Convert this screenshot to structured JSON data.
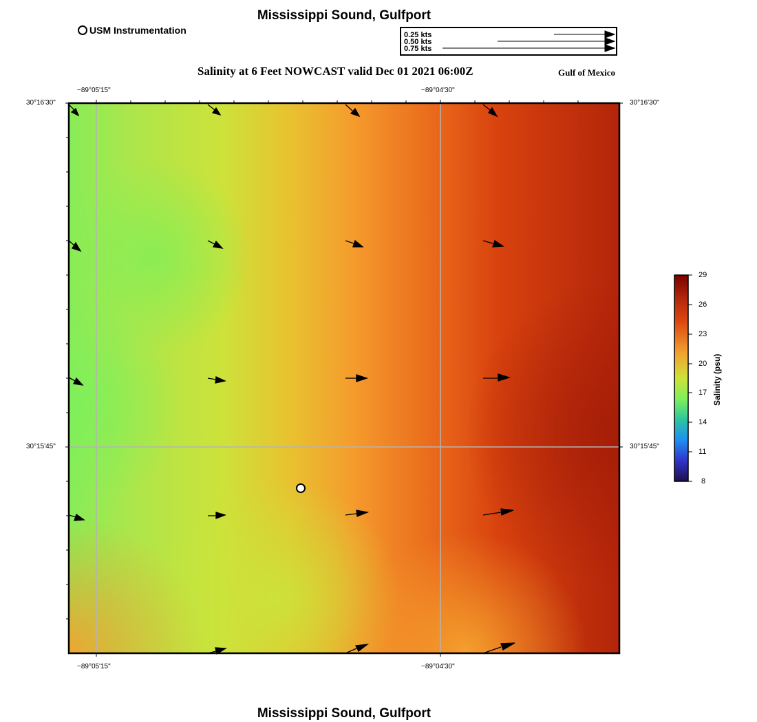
{
  "header": {
    "title": "Mississippi Sound, Gulfport",
    "subtitle": "Salinity at 6 Feet NOWCAST valid Dec 01 2021 06:00Z",
    "region": "Gulf of Mexico"
  },
  "footer": {
    "title": "Mississippi Sound, Gulfport"
  },
  "legend": {
    "marker_label": "USM Instrumentation"
  },
  "vector_scale": {
    "rows": [
      {
        "label": "0.25 kts"
      },
      {
        "label": "0.50 kts"
      },
      {
        "label": "0.75 kts"
      }
    ]
  },
  "map": {
    "lon_labels": [
      "−89°05'15\"",
      "−89°04'30\""
    ],
    "lat_labels": [
      "30°16'30\"",
      "30°15'45\""
    ]
  },
  "colorbar": {
    "title": "Salinity (psu)",
    "ticks": [
      "29",
      "26",
      "23",
      "20",
      "17",
      "14",
      "11",
      "8"
    ],
    "stops": [
      "#7a0000",
      "#b52a0c",
      "#dc4510",
      "#f2a230",
      "#cde23a",
      "#7ff05a",
      "#2dc6a0",
      "#1f8ff2",
      "#3034c8",
      "#1d0f50"
    ]
  },
  "colors": {
    "low_salinity": "#85ee5a",
    "mid_salinity": "#cde23a",
    "high_salinity": "#b52a0c"
  }
}
